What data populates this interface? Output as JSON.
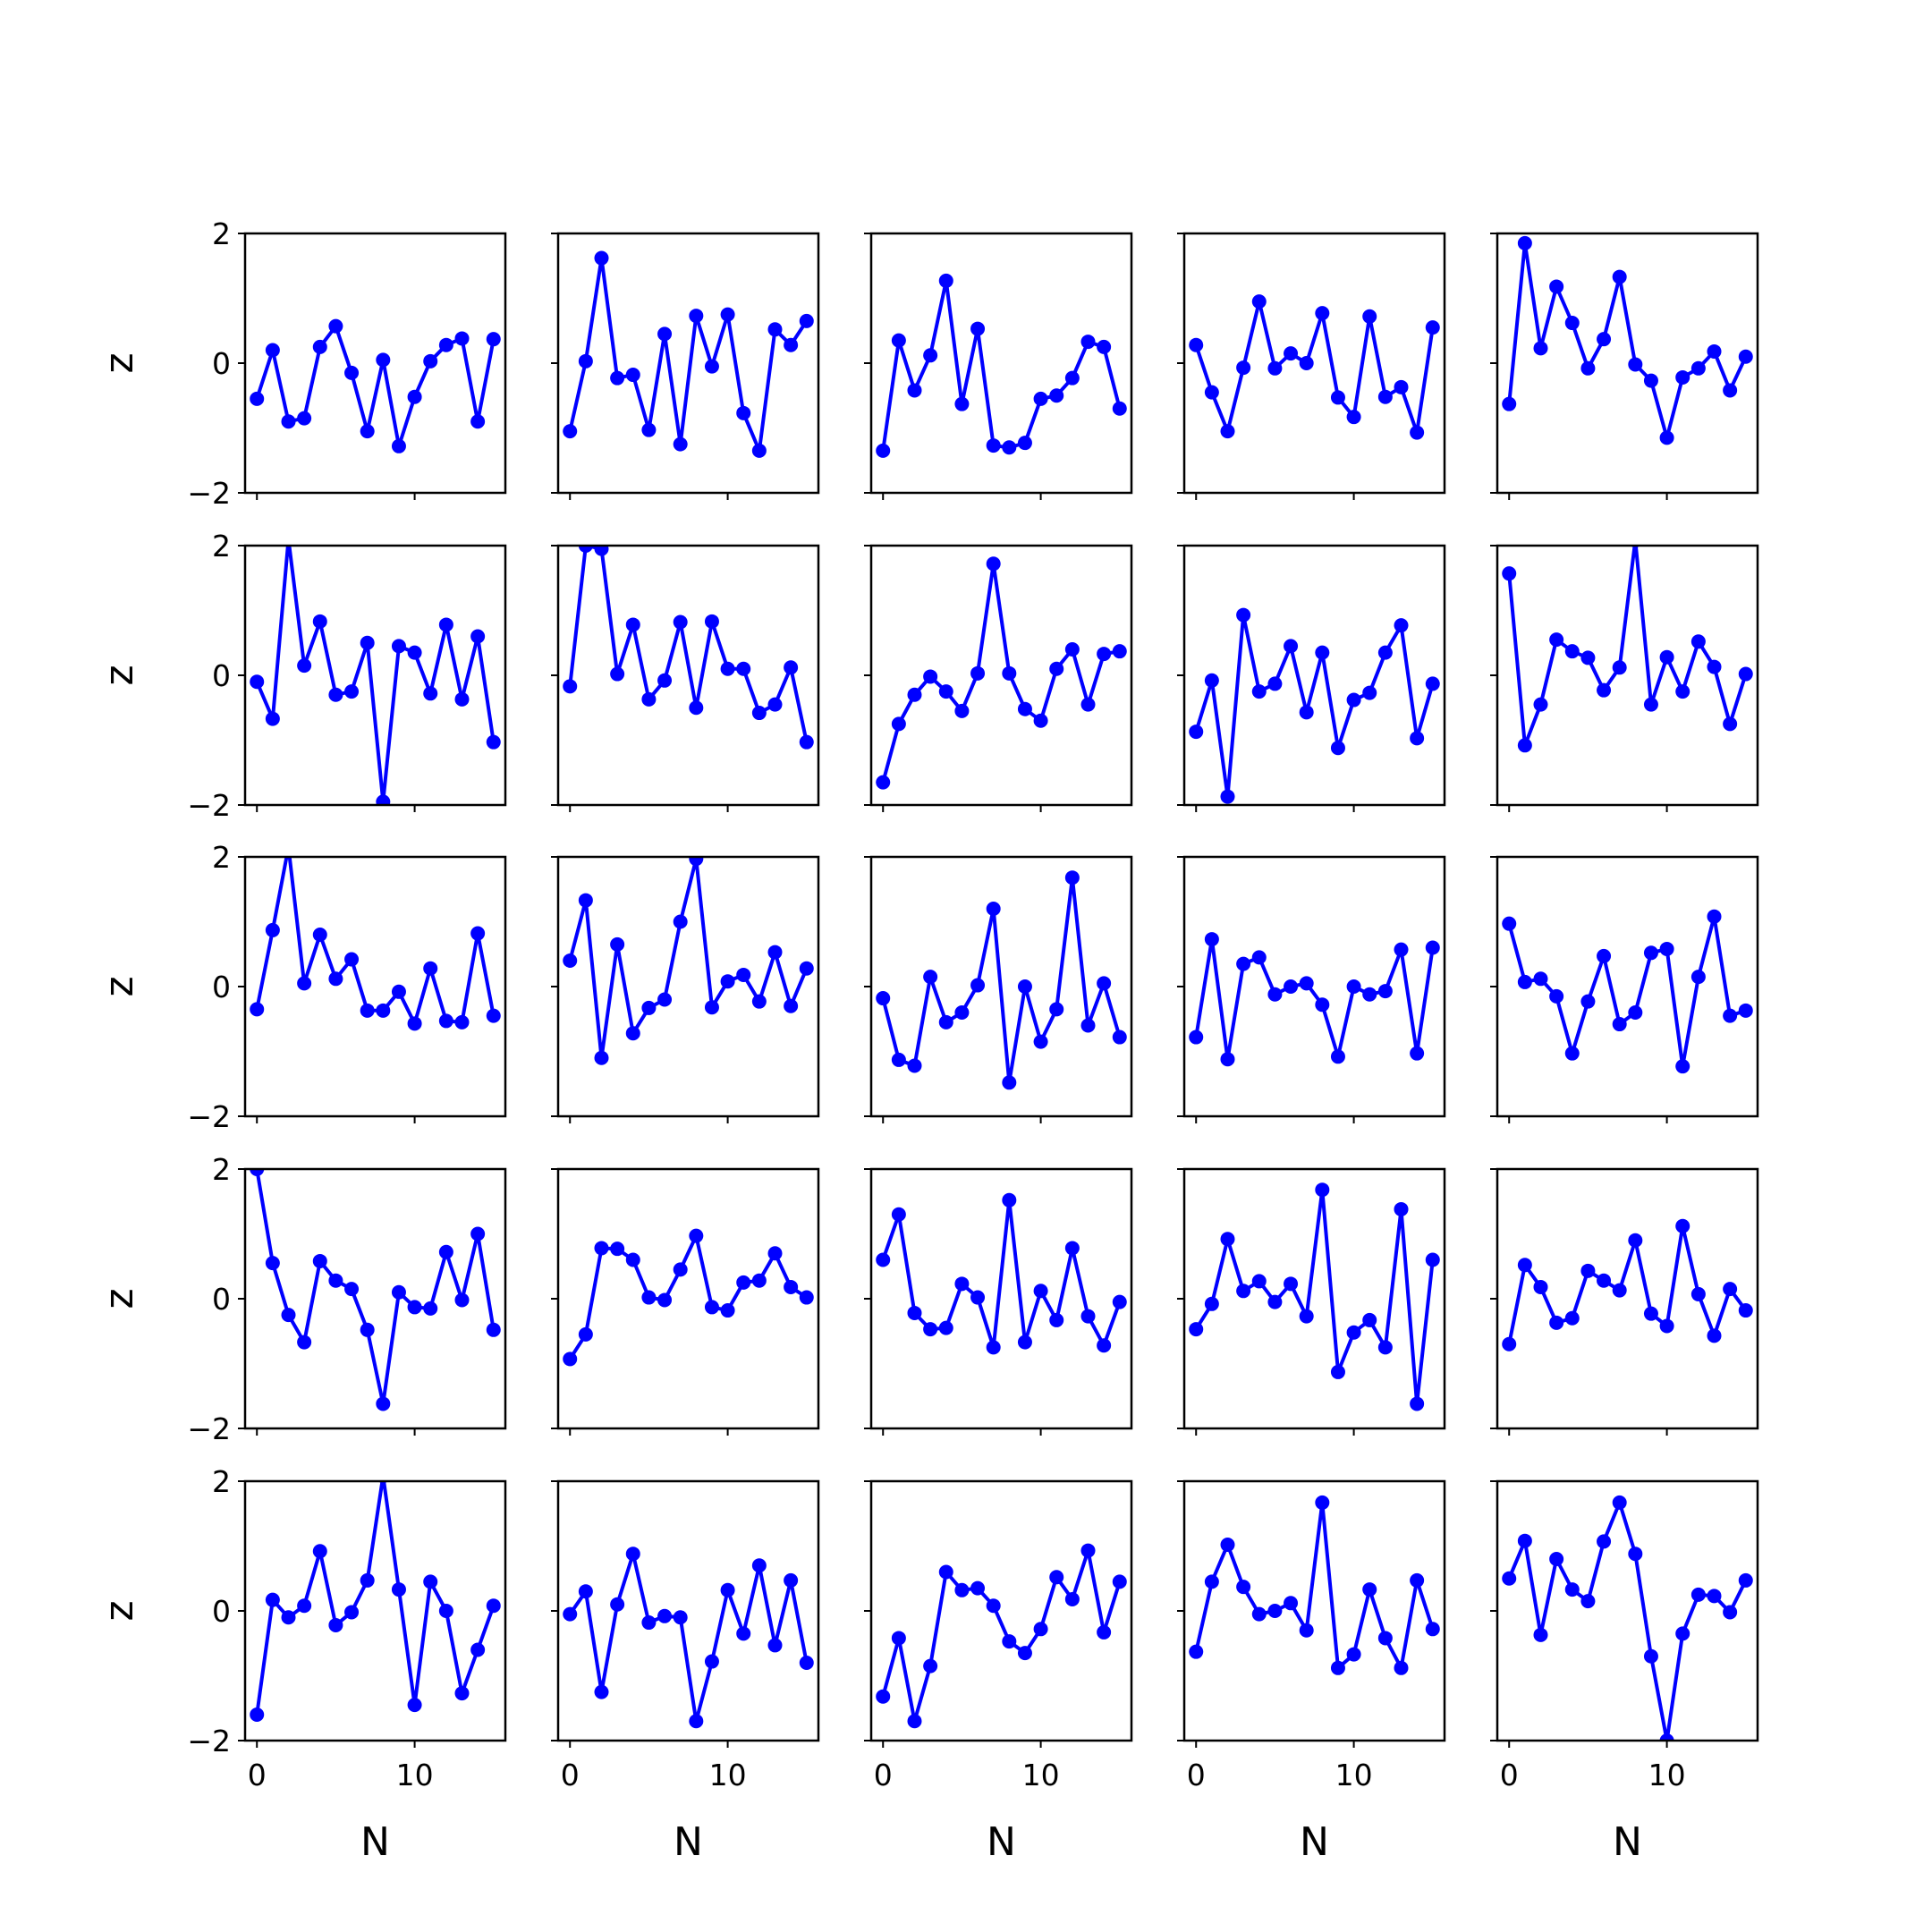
{
  "chart_data": {
    "type": "line",
    "layout": "grid of small multiples",
    "rows": 5,
    "cols": 5,
    "xlabel": "N",
    "ylabel": "z",
    "xlim": [
      -0.75,
      15.75
    ],
    "ylim": [
      -2,
      2
    ],
    "xticks": [
      0,
      10
    ],
    "yticks": [
      -2,
      0,
      2
    ],
    "x": [
      0,
      1,
      2,
      3,
      4,
      5,
      6,
      7,
      8,
      9,
      10,
      11,
      12,
      13,
      14,
      15
    ],
    "line_color": "#0000ff",
    "marker": "circle",
    "grid": false,
    "panels": [
      [
        -0.55,
        0.2,
        -0.9,
        -0.85,
        0.25,
        0.57,
        -0.15,
        -1.05,
        0.05,
        -1.28,
        -0.52,
        0.03,
        0.28,
        0.38,
        -0.9,
        0.37
      ],
      [
        -1.05,
        0.03,
        1.62,
        -0.23,
        -0.18,
        -1.03,
        0.45,
        -1.25,
        0.73,
        -0.05,
        0.75,
        -0.77,
        -1.35,
        0.52,
        0.28,
        0.65
      ],
      [
        -1.35,
        0.35,
        -0.42,
        0.12,
        1.27,
        -0.63,
        0.53,
        -1.27,
        -1.3,
        -1.23,
        -0.55,
        -0.5,
        -0.23,
        0.33,
        0.25,
        -0.7
      ],
      [
        0.28,
        -0.45,
        -1.05,
        -0.07,
        0.95,
        -0.08,
        0.15,
        0.0,
        0.77,
        -0.53,
        -0.83,
        0.72,
        -0.52,
        -0.37,
        -1.07,
        0.55
      ],
      [
        -0.63,
        1.85,
        0.23,
        1.18,
        0.62,
        -0.08,
        0.37,
        1.33,
        -0.02,
        -0.27,
        -1.15,
        -0.22,
        -0.08,
        0.18,
        -0.42,
        0.1
      ],
      [
        -0.1,
        -0.67,
        2.1,
        0.15,
        0.83,
        -0.3,
        -0.25,
        0.5,
        -1.95,
        0.45,
        0.35,
        -0.28,
        0.78,
        -0.37,
        0.6,
        -1.03
      ],
      [
        -0.17,
        2.0,
        1.95,
        0.02,
        0.78,
        -0.37,
        -0.08,
        0.82,
        -0.5,
        0.83,
        0.1,
        0.1,
        -0.58,
        -0.45,
        0.12,
        -1.03
      ],
      [
        -1.65,
        -0.75,
        -0.3,
        -0.02,
        -0.25,
        -0.55,
        0.03,
        1.72,
        0.03,
        -0.52,
        -0.7,
        0.1,
        0.4,
        -0.45,
        0.33,
        0.37
      ],
      [
        -0.87,
        -0.08,
        -1.87,
        0.93,
        -0.25,
        -0.13,
        0.45,
        -0.57,
        0.35,
        -1.12,
        -0.38,
        -0.27,
        0.35,
        0.77,
        -0.97,
        -0.13
      ],
      [
        1.57,
        -1.08,
        -0.45,
        0.55,
        0.37,
        0.27,
        -0.23,
        0.12,
        2.08,
        -0.45,
        0.28,
        -0.25,
        0.52,
        0.13,
        -0.75,
        0.02
      ],
      [
        -0.35,
        0.87,
        2.15,
        0.05,
        0.8,
        0.12,
        0.42,
        -0.37,
        -0.37,
        -0.08,
        -0.57,
        0.28,
        -0.53,
        -0.55,
        0.82,
        -0.45
      ],
      [
        0.4,
        1.33,
        -1.1,
        0.65,
        -0.72,
        -0.33,
        -0.2,
        1.0,
        1.97,
        -0.32,
        0.08,
        0.18,
        -0.23,
        0.53,
        -0.3,
        0.28
      ],
      [
        -0.18,
        -1.13,
        -1.22,
        0.15,
        -0.55,
        -0.4,
        0.02,
        1.2,
        -1.48,
        0.0,
        -0.85,
        -0.35,
        1.68,
        -0.6,
        0.05,
        -0.78
      ],
      [
        -0.78,
        0.73,
        -1.12,
        0.35,
        0.45,
        -0.12,
        0.0,
        0.05,
        -0.28,
        -1.08,
        0.0,
        -0.12,
        -0.07,
        0.57,
        -1.03,
        0.6
      ],
      [
        0.97,
        0.07,
        0.12,
        -0.15,
        -1.03,
        -0.23,
        0.47,
        -0.58,
        -0.4,
        0.52,
        0.58,
        -1.23,
        0.15,
        1.08,
        -0.45,
        -0.37
      ],
      [
        2.0,
        0.55,
        -0.25,
        -0.67,
        0.58,
        0.28,
        0.15,
        -0.48,
        -1.62,
        0.1,
        -0.13,
        -0.15,
        0.72,
        -0.02,
        1.0,
        -0.48
      ],
      [
        -0.93,
        -0.55,
        0.78,
        0.77,
        0.6,
        0.02,
        -0.02,
        0.45,
        0.97,
        -0.13,
        -0.18,
        0.25,
        0.28,
        0.7,
        0.18,
        0.02
      ],
      [
        0.6,
        1.3,
        -0.22,
        -0.47,
        -0.45,
        0.23,
        0.02,
        -0.75,
        1.52,
        -0.67,
        0.12,
        -0.33,
        0.78,
        -0.27,
        -0.72,
        -0.05
      ],
      [
        -0.47,
        -0.08,
        0.92,
        0.12,
        0.27,
        -0.05,
        0.23,
        -0.27,
        1.68,
        -1.13,
        -0.52,
        -0.33,
        -0.75,
        1.38,
        -1.62,
        0.6
      ],
      [
        -0.7,
        0.52,
        0.18,
        -0.37,
        -0.3,
        0.43,
        0.28,
        0.13,
        0.9,
        -0.23,
        -0.42,
        1.12,
        0.07,
        -0.57,
        0.15,
        -0.18
      ],
      [
        -1.6,
        0.17,
        -0.1,
        0.08,
        0.92,
        -0.22,
        -0.02,
        0.47,
        2.08,
        0.33,
        -1.45,
        0.45,
        0.0,
        -1.27,
        -0.6,
        0.08
      ],
      [
        -0.05,
        0.3,
        -1.25,
        0.1,
        0.88,
        -0.18,
        -0.08,
        -0.1,
        -1.7,
        -0.78,
        0.32,
        -0.35,
        0.7,
        -0.53,
        0.47,
        -0.8
      ],
      [
        -1.32,
        -0.42,
        -1.7,
        -0.85,
        0.6,
        0.32,
        0.35,
        0.08,
        -0.47,
        -0.65,
        -0.28,
        0.52,
        0.18,
        0.93,
        -0.33,
        0.45
      ],
      [
        -0.63,
        0.45,
        1.02,
        0.37,
        -0.05,
        0.0,
        0.12,
        -0.3,
        1.67,
        -0.88,
        -0.67,
        0.33,
        -0.42,
        -0.88,
        0.47,
        -0.28
      ],
      [
        0.5,
        1.08,
        -0.37,
        0.8,
        0.33,
        0.15,
        1.07,
        1.67,
        0.88,
        -0.7,
        -2.0,
        -0.35,
        0.25,
        0.23,
        -0.02,
        0.47
      ]
    ]
  }
}
